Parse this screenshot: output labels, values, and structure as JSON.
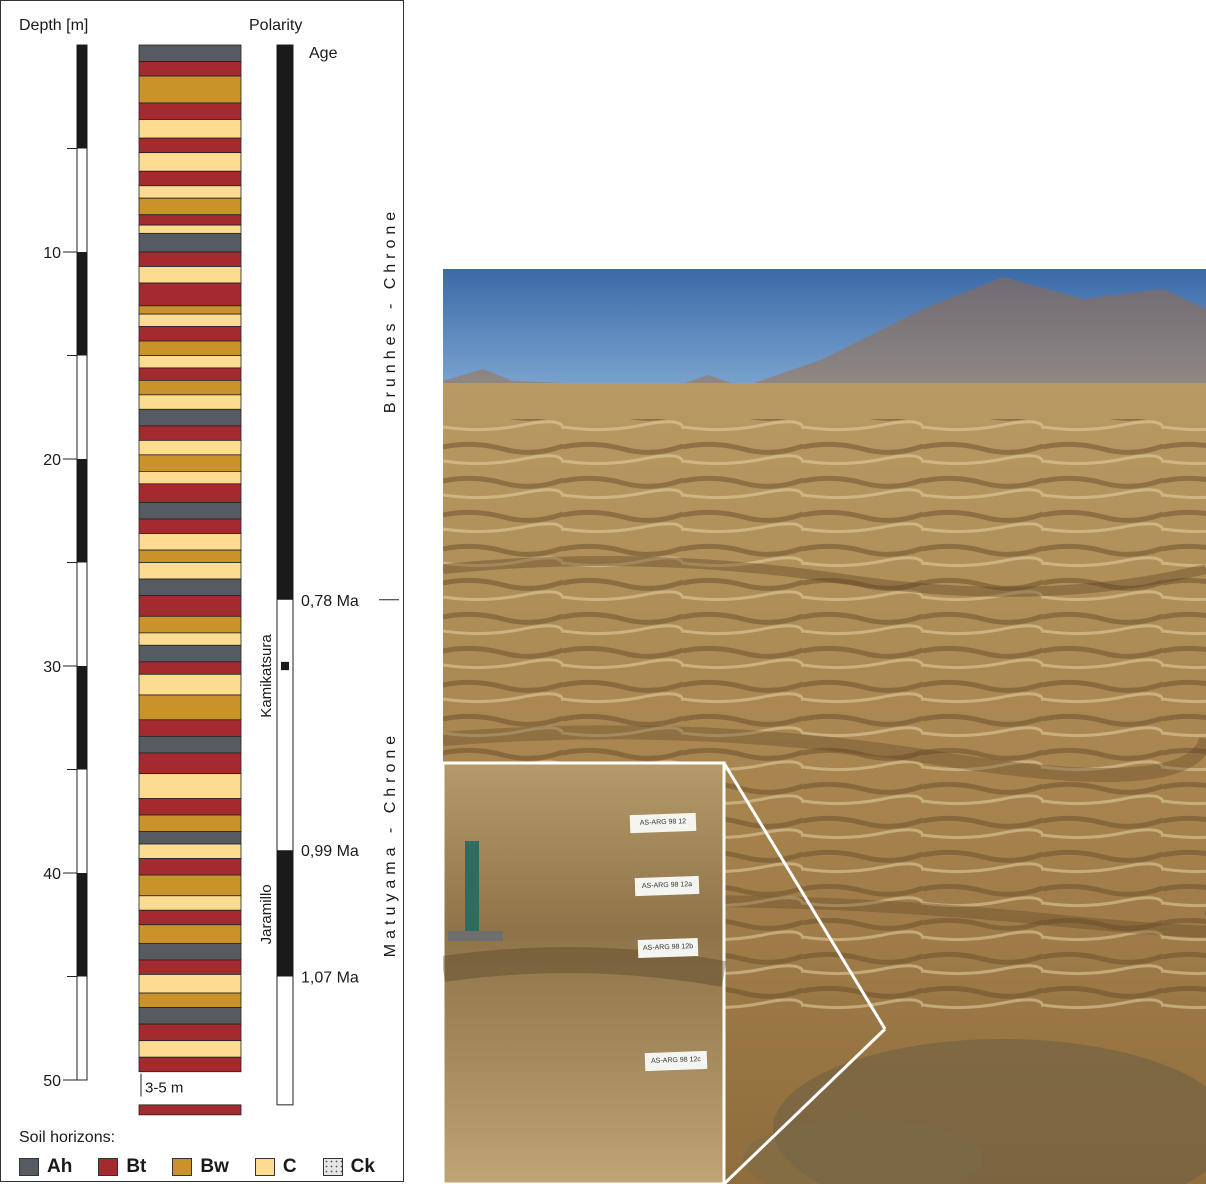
{
  "header": {
    "depth_label": "Depth [m]",
    "polarity_label": "Polarity",
    "age_label": "Age"
  },
  "depth_axis": {
    "ticks": [
      {
        "value": 10,
        "label": "10"
      },
      {
        "value": 20,
        "label": "20"
      },
      {
        "value": 30,
        "label": "30"
      },
      {
        "value": 40,
        "label": "40"
      },
      {
        "value": 50,
        "label": "50"
      }
    ],
    "range_m": [
      0,
      50
    ]
  },
  "depth_bar_blocks": [
    [
      0,
      5
    ],
    [
      10,
      15
    ],
    [
      20,
      25
    ],
    [
      30,
      35
    ],
    [
      40,
      45
    ]
  ],
  "gap_note": "3-5 m",
  "profile_layers": [
    {
      "from": 0.0,
      "to": 0.8,
      "type": "Ah"
    },
    {
      "from": 0.8,
      "to": 1.5,
      "type": "Bt"
    },
    {
      "from": 1.5,
      "to": 2.8,
      "type": "Bw"
    },
    {
      "from": 2.8,
      "to": 3.6,
      "type": "Bt"
    },
    {
      "from": 3.6,
      "to": 4.5,
      "type": "C"
    },
    {
      "from": 4.5,
      "to": 5.2,
      "type": "Bt"
    },
    {
      "from": 5.2,
      "to": 6.1,
      "type": "C"
    },
    {
      "from": 6.1,
      "to": 6.8,
      "type": "Bt"
    },
    {
      "from": 6.8,
      "to": 7.4,
      "type": "C"
    },
    {
      "from": 7.4,
      "to": 8.2,
      "type": "Bw"
    },
    {
      "from": 8.2,
      "to": 8.7,
      "type": "Bt"
    },
    {
      "from": 8.7,
      "to": 9.1,
      "type": "C"
    },
    {
      "from": 9.1,
      "to": 10.0,
      "type": "Ah"
    },
    {
      "from": 10.0,
      "to": 10.7,
      "type": "Bt"
    },
    {
      "from": 10.7,
      "to": 11.5,
      "type": "C"
    },
    {
      "from": 11.5,
      "to": 12.6,
      "type": "Bt"
    },
    {
      "from": 12.6,
      "to": 13.0,
      "type": "Bw"
    },
    {
      "from": 13.0,
      "to": 13.6,
      "type": "C"
    },
    {
      "from": 13.6,
      "to": 14.3,
      "type": "Bt"
    },
    {
      "from": 14.3,
      "to": 15.0,
      "type": "Bw"
    },
    {
      "from": 15.0,
      "to": 15.6,
      "type": "C"
    },
    {
      "from": 15.6,
      "to": 16.2,
      "type": "Bt"
    },
    {
      "from": 16.2,
      "to": 16.9,
      "type": "Bw"
    },
    {
      "from": 16.9,
      "to": 17.6,
      "type": "C"
    },
    {
      "from": 17.6,
      "to": 18.4,
      "type": "Ah"
    },
    {
      "from": 18.4,
      "to": 19.1,
      "type": "Bt"
    },
    {
      "from": 19.1,
      "to": 19.8,
      "type": "C"
    },
    {
      "from": 19.8,
      "to": 20.6,
      "type": "Bw"
    },
    {
      "from": 20.6,
      "to": 21.2,
      "type": "C"
    },
    {
      "from": 21.2,
      "to": 22.1,
      "type": "Bt"
    },
    {
      "from": 22.1,
      "to": 22.9,
      "type": "Ah"
    },
    {
      "from": 22.9,
      "to": 23.6,
      "type": "Bt"
    },
    {
      "from": 23.6,
      "to": 24.4,
      "type": "C"
    },
    {
      "from": 24.4,
      "to": 25.0,
      "type": "Bw"
    },
    {
      "from": 25.0,
      "to": 25.8,
      "type": "C"
    },
    {
      "from": 25.8,
      "to": 26.6,
      "type": "Ah"
    },
    {
      "from": 26.6,
      "to": 27.6,
      "type": "Bt"
    },
    {
      "from": 27.6,
      "to": 28.4,
      "type": "Bw"
    },
    {
      "from": 28.4,
      "to": 29.0,
      "type": "C"
    },
    {
      "from": 29.0,
      "to": 29.8,
      "type": "Ah"
    },
    {
      "from": 29.8,
      "to": 30.4,
      "type": "Bt"
    },
    {
      "from": 30.4,
      "to": 31.4,
      "type": "C"
    },
    {
      "from": 31.4,
      "to": 32.6,
      "type": "Bw"
    },
    {
      "from": 32.6,
      "to": 33.4,
      "type": "Bt"
    },
    {
      "from": 33.4,
      "to": 34.2,
      "type": "Ah"
    },
    {
      "from": 34.2,
      "to": 35.2,
      "type": "Bt"
    },
    {
      "from": 35.2,
      "to": 36.4,
      "type": "C"
    },
    {
      "from": 36.4,
      "to": 37.2,
      "type": "Bt"
    },
    {
      "from": 37.2,
      "to": 38.0,
      "type": "Bw"
    },
    {
      "from": 38.0,
      "to": 38.6,
      "type": "Ah"
    },
    {
      "from": 38.6,
      "to": 39.3,
      "type": "C"
    },
    {
      "from": 39.3,
      "to": 40.1,
      "type": "Bt"
    },
    {
      "from": 40.1,
      "to": 41.1,
      "type": "Bw"
    },
    {
      "from": 41.1,
      "to": 41.8,
      "type": "C"
    },
    {
      "from": 41.8,
      "to": 42.5,
      "type": "Bt"
    },
    {
      "from": 42.5,
      "to": 43.4,
      "type": "Bw"
    },
    {
      "from": 43.4,
      "to": 44.2,
      "type": "Ah"
    },
    {
      "from": 44.2,
      "to": 44.9,
      "type": "Bt"
    },
    {
      "from": 44.9,
      "to": 45.8,
      "type": "C"
    },
    {
      "from": 45.8,
      "to": 46.5,
      "type": "Bw"
    },
    {
      "from": 46.5,
      "to": 47.3,
      "type": "Ah"
    },
    {
      "from": 47.3,
      "to": 48.1,
      "type": "Bt"
    },
    {
      "from": 48.1,
      "to": 48.9,
      "type": "C"
    },
    {
      "from": 48.9,
      "to": 49.6,
      "type": "Bt"
    }
  ],
  "polarity": {
    "normal_intervals": [
      [
        0,
        26.8
      ],
      [
        29.8,
        30.2
      ],
      [
        38.9,
        45.0
      ]
    ],
    "column_bottom_m": 51.2,
    "events": [
      "Kamikatsura",
      "Jaramillo"
    ],
    "chrons": [
      "Brunhes - Chrone",
      "Matuyama - Chrone"
    ],
    "ages": [
      {
        "depth_m": 26.8,
        "label": "0,78 Ma"
      },
      {
        "depth_m": 38.9,
        "label": "0,99 Ma"
      },
      {
        "depth_m": 45.0,
        "label": "1,07 Ma"
      }
    ]
  },
  "legend": {
    "title": "Soil horizons:",
    "items": [
      {
        "key": "Ah",
        "label": "Ah",
        "color": "#565b61"
      },
      {
        "key": "Bt",
        "label": "Bt",
        "color": "#a52a30"
      },
      {
        "key": "Bw",
        "label": "Bw",
        "color": "#c9932a"
      },
      {
        "key": "C",
        "label": "C",
        "color": "#fbdc90"
      },
      {
        "key": "Ck",
        "label": "Ck",
        "color": "#e6e6e6"
      }
    ]
  },
  "photo": {
    "sample_labels": [
      "AS-ARG 98 12",
      "AS-ARG 98 12a",
      "AS-ARG 98 12b",
      "AS-ARG 98 12c"
    ]
  }
}
